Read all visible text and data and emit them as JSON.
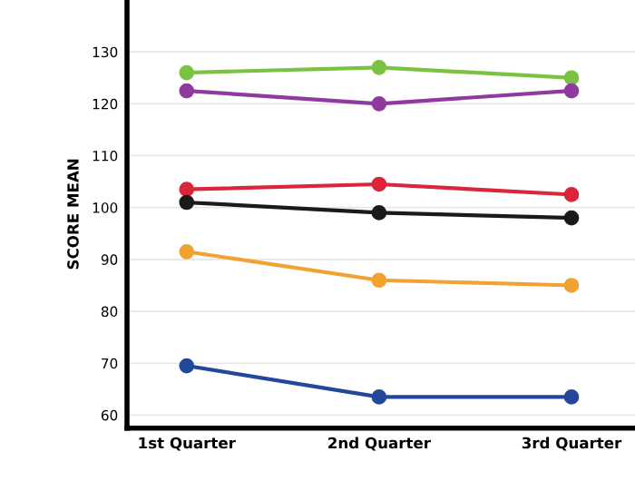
{
  "chart_data": {
    "type": "line",
    "ylabel": "SCORE MEAN",
    "categories": [
      "1st Quarter",
      "2nd Quarter",
      "3rd Quarter"
    ],
    "series": [
      {
        "color": "#7cc242",
        "values": [
          126,
          127,
          125
        ]
      },
      {
        "color": "#8e3a9e",
        "values": [
          122.5,
          120,
          122.5
        ]
      },
      {
        "color": "#d9263a",
        "values": [
          103.5,
          104.5,
          102.5
        ]
      },
      {
        "color": "#1a1a1a",
        "values": [
          101,
          99,
          98
        ]
      },
      {
        "color": "#f2a230",
        "values": [
          91.5,
          86,
          85
        ]
      },
      {
        "color": "#23479b",
        "values": [
          69.5,
          63.5,
          63.5
        ]
      }
    ],
    "ylim": [
      57.5,
      140
    ],
    "yticks": [
      60,
      70,
      80,
      90,
      100,
      110,
      120,
      130
    ],
    "grid": "y",
    "marker": "circle",
    "line_style": "solid"
  }
}
